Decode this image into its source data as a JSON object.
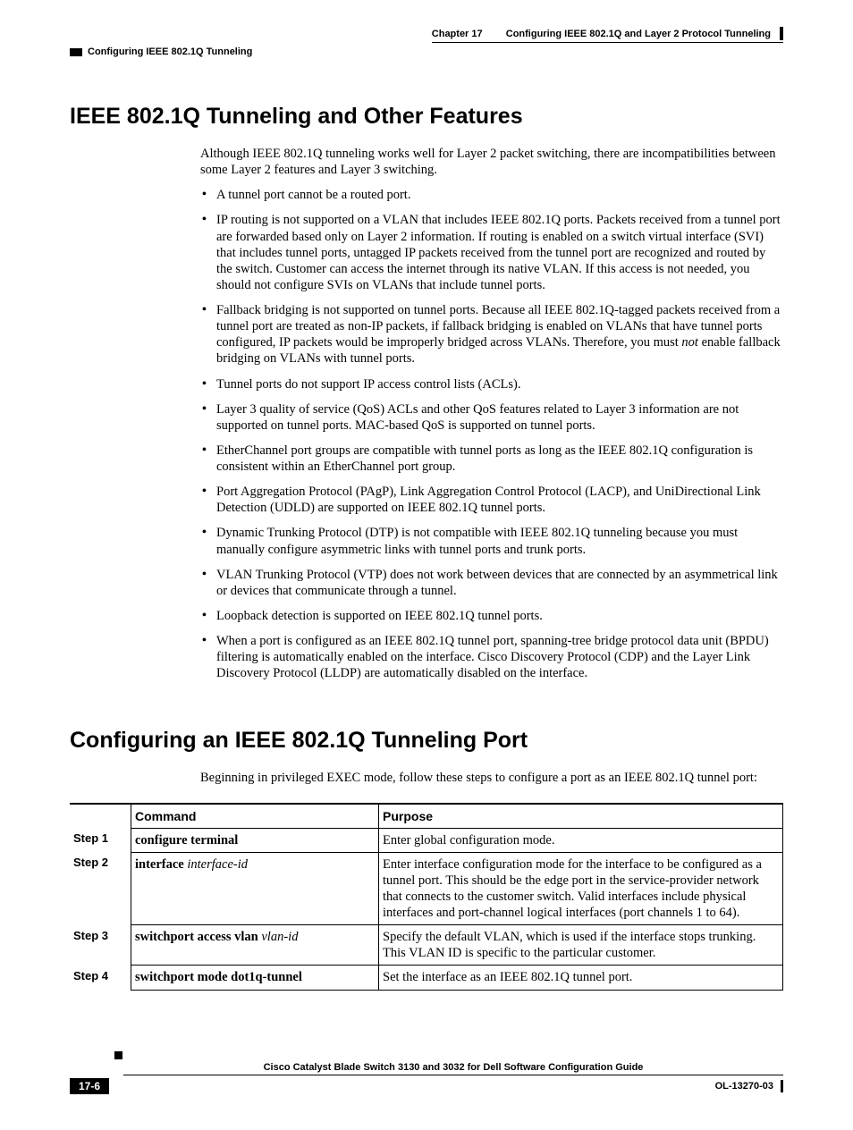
{
  "header": {
    "chapter_label": "Chapter 17",
    "chapter_title": "Configuring IEEE 802.1Q and Layer 2 Protocol Tunneling",
    "section_label": "Configuring IEEE 802.1Q Tunneling"
  },
  "section1": {
    "title": "IEEE 802.1Q Tunneling and Other Features",
    "intro": "Although IEEE 802.1Q tunneling works well for Layer 2 packet switching, there are incompatibilities between some Layer 2 features and Layer 3 switching.",
    "bullets": [
      "A tunnel port cannot be a routed port.",
      "IP routing is not supported on a VLAN that includes IEEE 802.1Q ports. Packets received from a tunnel port are forwarded based only on Layer 2 information. If routing is enabled on a switch virtual interface (SVI) that includes tunnel ports, untagged IP packets received from the tunnel port are recognized and routed by the switch. Customer can access the internet through its native VLAN. If this access is not needed, you should not configure SVIs on VLANs that include tunnel ports.",
      "Fallback bridging is not supported on tunnel ports. Because all IEEE 802.1Q-tagged packets received from a tunnel port are treated as non-IP packets, if fallback bridging is enabled on VLANs that have tunnel ports configured, IP packets would be improperly bridged across VLANs. Therefore, you must <em class=\"ital\">not</em> enable fallback bridging on VLANs with tunnel ports.",
      "Tunnel ports do not support IP access control lists (ACLs).",
      "Layer 3 quality of service (QoS) ACLs and other QoS features related to Layer 3 information are not supported on tunnel ports. MAC-based QoS is supported on tunnel ports.",
      "EtherChannel port groups are compatible with tunnel ports as long as the IEEE 802.1Q configuration is consistent within an EtherChannel port group.",
      "Port Aggregation Protocol (PAgP), Link Aggregation Control Protocol (LACP), and UniDirectional Link Detection (UDLD) are supported on IEEE 802.1Q tunnel ports.",
      "Dynamic Trunking Protocol (DTP) is not compatible with IEEE 802.1Q tunneling because you must manually configure asymmetric links with tunnel ports and trunk ports.",
      "VLAN Trunking Protocol (VTP) does not work between devices that are connected by an asymmetrical link or devices that communicate through a tunnel.",
      "Loopback detection is supported on IEEE 802.1Q tunnel ports.",
      "When a port is configured as an IEEE 802.1Q tunnel port, spanning-tree bridge protocol data unit (BPDU) filtering is automatically enabled on the interface. Cisco Discovery Protocol (CDP) and the Layer Link Discovery Protocol (LLDP) are automatically disabled on the interface."
    ]
  },
  "section2": {
    "title": "Configuring an IEEE 802.1Q Tunneling Port",
    "intro": "Beginning in privileged EXEC mode, follow these steps to configure a port as an IEEE 802.1Q tunnel port:",
    "table": {
      "headers": {
        "command": "Command",
        "purpose": "Purpose"
      },
      "rows": [
        {
          "step": "Step 1",
          "command": "<span class=\"cmd-bold\">configure terminal</span>",
          "purpose": "Enter global configuration mode."
        },
        {
          "step": "Step 2",
          "command": "<span class=\"cmd-bold\">interface</span> <span class=\"cmd-ital\">interface-id</span>",
          "purpose": "Enter interface configuration mode for the interface to be configured as a tunnel port. This should be the edge port in the service-provider network that connects to the customer switch. Valid interfaces include physical interfaces and port-channel logical interfaces (port channels 1 to 64)."
        },
        {
          "step": "Step 3",
          "command": "<span class=\"cmd-bold\">switchport access vlan</span> <span class=\"cmd-ital\">vlan-id</span>",
          "purpose": "Specify the default VLAN, which is used if the interface stops trunking. This VLAN ID is specific to the particular customer."
        },
        {
          "step": "Step 4",
          "command": "<span class=\"cmd-bold\">switchport mode dot1q-tunnel</span>",
          "purpose": "Set the interface as an IEEE 802.1Q tunnel port."
        }
      ]
    }
  },
  "footer": {
    "guide": "Cisco Catalyst Blade Switch 3130 and 3032 for Dell Software Configuration Guide",
    "page": "17-6",
    "docid": "OL-13270-03"
  }
}
